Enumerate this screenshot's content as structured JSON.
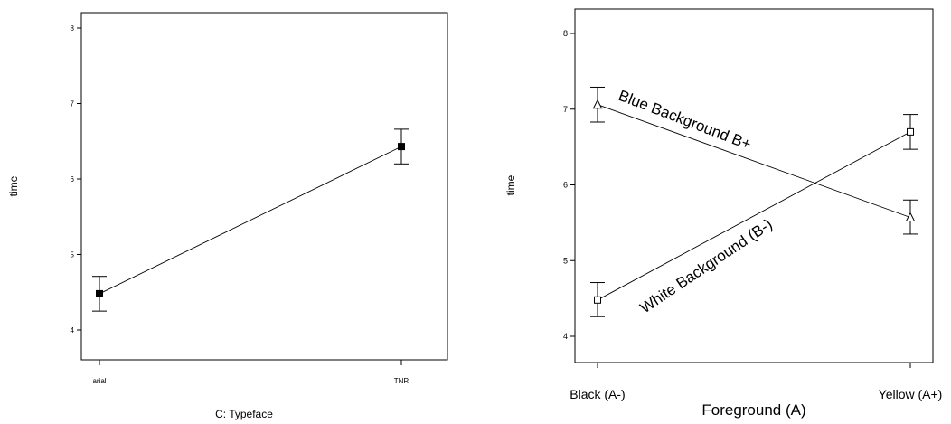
{
  "chart_data": [
    {
      "type": "line",
      "title": "",
      "xlabel": "C: Typeface",
      "ylabel": "time",
      "categories": [
        "arial",
        "TNR"
      ],
      "ylim": [
        3.7,
        8.2
      ],
      "yticks": [
        "4",
        "5",
        "6",
        "7",
        "8"
      ],
      "grid": false,
      "series": [
        {
          "marker": "filled-square",
          "values": [
            4.48,
            6.43
          ],
          "error_low": [
            4.25,
            6.2
          ],
          "error_high": [
            4.71,
            6.66
          ]
        }
      ]
    },
    {
      "type": "line",
      "title": "",
      "xlabel": "Foreground (A)",
      "ylabel": "time",
      "categories": [
        "Black (A-)",
        "Yellow (A+)"
      ],
      "ylim": [
        3.8,
        8.2
      ],
      "yticks": [
        "4",
        "5",
        "6",
        "7",
        "8"
      ],
      "grid": false,
      "series": [
        {
          "name": "Blue Background B+",
          "marker": "open-triangle",
          "values": [
            7.06,
            5.57
          ],
          "error_low": [
            6.83,
            5.35
          ],
          "error_high": [
            7.29,
            5.8
          ]
        },
        {
          "name": "White Background (B-)",
          "marker": "open-square",
          "values": [
            4.48,
            6.7
          ],
          "error_low": [
            4.26,
            6.47
          ],
          "error_high": [
            4.71,
            6.93
          ]
        }
      ]
    }
  ]
}
